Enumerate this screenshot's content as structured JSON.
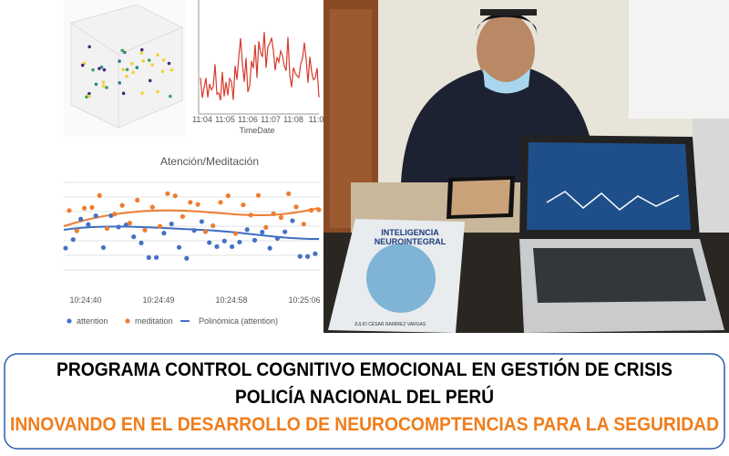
{
  "panels": {
    "line_chart": {
      "xticks": [
        "11:04",
        "11:05",
        "11:06",
        "11:07",
        "11:08",
        "11:0"
      ],
      "xlabel": "TimeDate"
    },
    "eeg_chart": {
      "title": "Atención/Meditación",
      "xticks": [
        "10:24:40",
        "10:24:49",
        "10:24:58",
        "10:25:06"
      ],
      "legend": [
        "attention",
        "meditation",
        "Polinómica (attention)"
      ]
    }
  },
  "photo": {
    "book_title": [
      "INTELIGENCIA",
      "NEUROINTEGRAL"
    ],
    "book_author": "JULIO CÉSAR RAMIREZ VARGAS"
  },
  "banner": {
    "line1": "PROGRAMA CONTROL COGNITIVO EMOCIONAL EN GESTIÓN DE CRISIS",
    "line2": "POLICÍA NACIONAL DEL PERÚ",
    "line3": "INNOVANDO EN EL DESARROLLO DE NEUROCOMPTENCIAS PARA LA SEGURIDAD"
  }
}
